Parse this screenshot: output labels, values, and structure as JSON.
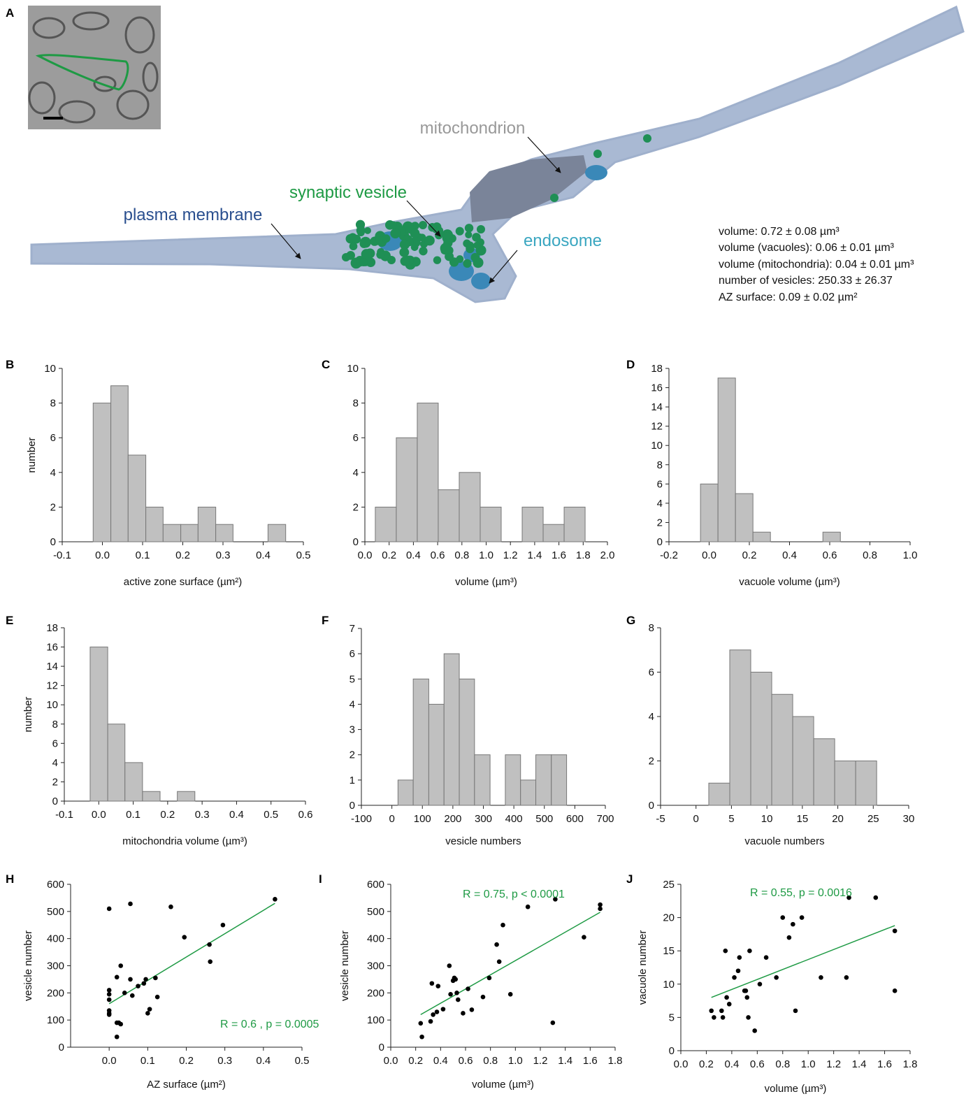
{
  "figure_a": {
    "panel_label": "A",
    "annotations": [
      "mitochondrion",
      "synaptic vesicle",
      "plasma membrane",
      "endosome"
    ],
    "stats": [
      "volume: 0.72 ± 0.08  µm³",
      "volume (vacuoles): 0.06 ± 0.01 µm³",
      "volume (mitochondria): 0.04 ± 0.01 µm³",
      "number of vesicles: 250.33 ± 26.37",
      "AZ surface: 0.09 ± 0.02 µm²"
    ]
  },
  "chart_data": [
    {
      "type": "histogram",
      "panel_label": "B",
      "color": "#c0c0c0",
      "bins": [
        -0.023,
        0.021,
        0.064,
        0.108,
        0.151,
        0.195,
        0.238,
        0.282,
        0.325,
        0.369,
        0.412,
        0.456
      ],
      "counts": [
        8,
        9,
        5,
        2,
        1,
        1,
        2,
        1,
        0,
        0,
        1
      ],
      "xlim": [
        -0.1,
        0.5
      ],
      "xticks": [
        -0.1,
        {
          "value": 0,
          "label": "0.0"
        },
        0.1,
        0.2,
        0.3,
        0.4,
        0.5
      ],
      "ylim": [
        0,
        10
      ],
      "yticks": [
        0,
        2,
        4,
        6,
        8,
        10
      ],
      "x_label": "active zone surface (µm²)",
      "y_label": "number"
    },
    {
      "type": "histogram",
      "panel_label": "C",
      "color": "#c0c0c0",
      "bins": [
        0.086,
        0.259,
        0.432,
        0.605,
        0.778,
        0.951,
        1.124,
        1.297,
        1.47,
        1.643,
        1.816
      ],
      "counts": [
        2,
        6,
        8,
        3,
        4,
        2,
        0,
        2,
        1,
        2
      ],
      "xlim": [
        0,
        2
      ],
      "xticks": [
        {
          "value": 0,
          "label": "0.0"
        },
        0.2,
        0.4,
        0.6,
        0.8,
        {
          "value": 1,
          "label": "1.0"
        },
        1.2,
        1.4,
        1.6,
        1.8,
        {
          "value": 2,
          "label": "2.0"
        }
      ],
      "ylim": [
        0,
        10
      ],
      "yticks": [
        0,
        2,
        4,
        6,
        8,
        10
      ],
      "x_label": "volume (µm³)"
    },
    {
      "type": "histogram",
      "panel_label": "D",
      "color": "#c0c0c0",
      "bins": [
        -0.043,
        0.044,
        0.131,
        0.218,
        0.305,
        0.392,
        0.479,
        0.566,
        0.653
      ],
      "counts": [
        6,
        17,
        5,
        1,
        0,
        0,
        0,
        1
      ],
      "xlim": [
        -0.2,
        1
      ],
      "xticks": [
        -0.2,
        {
          "value": 0,
          "label": "0.0"
        },
        0.2,
        0.4,
        0.6,
        0.8,
        {
          "value": 1,
          "label": "1.0"
        }
      ],
      "ylim": [
        0,
        18
      ],
      "yticks": [
        0,
        2,
        4,
        6,
        8,
        10,
        12,
        14,
        16,
        18
      ],
      "x_label": "vacuole volume (µm³)"
    },
    {
      "type": "histogram",
      "panel_label": "E",
      "color": "#c0c0c0",
      "bins": [
        -0.025,
        0.026,
        0.076,
        0.127,
        0.178,
        0.228,
        0.279
      ],
      "counts": [
        16,
        8,
        4,
        1,
        0,
        1
      ],
      "xlim": [
        -0.1,
        0.6
      ],
      "xticks": [
        -0.1,
        {
          "value": 0,
          "label": "0.0"
        },
        0.1,
        0.2,
        0.3,
        0.4,
        0.5,
        0.6
      ],
      "ylim": [
        0,
        18
      ],
      "yticks": [
        0,
        2,
        4,
        6,
        8,
        10,
        12,
        14,
        16,
        18
      ],
      "x_label": "mitochondria volume (µm³)",
      "y_label": "number"
    },
    {
      "type": "histogram",
      "panel_label": "F",
      "color": "#c0c0c0",
      "bins": [
        20,
        70,
        121,
        171,
        221,
        271,
        322,
        372,
        422,
        472,
        523,
        573
      ],
      "counts": [
        1,
        5,
        4,
        6,
        5,
        2,
        0,
        2,
        1,
        2,
        2
      ],
      "xlim": [
        -100,
        700
      ],
      "xticks": [
        -100,
        0,
        100,
        200,
        300,
        400,
        500,
        600,
        700
      ],
      "ylim": [
        0,
        7
      ],
      "yticks": [
        0,
        1,
        2,
        3,
        4,
        5,
        6,
        7
      ],
      "x_label": "vesicle numbers"
    },
    {
      "type": "histogram",
      "panel_label": "G",
      "color": "#c0c0c0",
      "bins": [
        1.8,
        4.76,
        7.72,
        10.68,
        13.64,
        16.6,
        19.56,
        22.52,
        25.48
      ],
      "counts": [
        1,
        7,
        6,
        5,
        4,
        3,
        2,
        2
      ],
      "xlim": [
        -5,
        30
      ],
      "xticks": [
        -5,
        0,
        5,
        10,
        15,
        20,
        25,
        30
      ],
      "ylim": [
        0,
        8
      ],
      "yticks": [
        0,
        2,
        4,
        6,
        8
      ],
      "x_label": "vacuole numbers"
    },
    {
      "type": "scatter",
      "panel_label": "H",
      "color": "#000000",
      "x": [
        0,
        0,
        0,
        0,
        0,
        0,
        0,
        0.02,
        0.025,
        0.03,
        0.02,
        0.02,
        0.03,
        0.04,
        0.055,
        0.055,
        0.06,
        0.075,
        0.09,
        0.095,
        0.1,
        0.105,
        0.12,
        0.125,
        0.16,
        0.195,
        0.26,
        0.262,
        0.295,
        0.43
      ],
      "y": [
        510,
        210,
        195,
        175,
        135,
        125,
        120,
        90,
        90,
        85,
        38,
        258,
        300,
        200,
        528,
        250,
        190,
        225,
        235,
        250,
        125,
        140,
        255,
        185,
        517,
        405,
        378,
        315,
        450,
        545
      ],
      "trendline": {
        "x": [
          0,
          0.43
        ],
        "y": [
          160,
          530
        ],
        "color": "#1e9a44"
      },
      "annotation": "R = 0.6 , p = 0.0005",
      "xlim": [
        -0.1,
        0.5
      ],
      "xticks": [
        {
          "value": 0,
          "label": "0.0"
        },
        0.1,
        0.2,
        0.3,
        0.4,
        0.5
      ],
      "ylim": [
        0,
        600
      ],
      "yticks": [
        0,
        100,
        200,
        300,
        400,
        500,
        600
      ],
      "x_label": "AZ surface (µm²)",
      "y_label": "vesicle number"
    },
    {
      "type": "scatter",
      "panel_label": "I",
      "color": "#000000",
      "x": [
        0.24,
        0.25,
        0.32,
        0.33,
        0.34,
        0.37,
        0.38,
        0.42,
        0.47,
        0.48,
        0.5,
        0.51,
        0.52,
        0.53,
        0.54,
        0.58,
        0.62,
        0.65,
        0.74,
        0.79,
        0.85,
        0.87,
        0.9,
        0.96,
        1.1,
        1.3,
        1.32,
        1.55,
        1.68,
        1.68
      ],
      "y": [
        88,
        38,
        95,
        235,
        120,
        130,
        225,
        140,
        300,
        195,
        245,
        255,
        250,
        200,
        175,
        125,
        215,
        138,
        185,
        255,
        378,
        315,
        450,
        195,
        517,
        90,
        545,
        405,
        525,
        510
      ],
      "trendline": {
        "x": [
          0.24,
          1.68
        ],
        "y": [
          120,
          497
        ],
        "color": "#1e9a44"
      },
      "annotation": "R = 0.75, p < 0.0001",
      "xlim": [
        0,
        1.8
      ],
      "xticks": [
        {
          "value": 0,
          "label": "0.0"
        },
        0.2,
        0.4,
        0.6,
        0.8,
        {
          "value": 1,
          "label": "1.0"
        },
        1.2,
        1.4,
        1.6,
        1.8
      ],
      "ylim": [
        0,
        600
      ],
      "yticks": [
        0,
        100,
        200,
        300,
        400,
        500,
        600
      ],
      "x_label": "volume (µm³)",
      "y_label": "vesicle number"
    },
    {
      "type": "scatter",
      "panel_label": "J",
      "color": "#000000",
      "x": [
        0.24,
        0.26,
        0.32,
        0.33,
        0.35,
        0.36,
        0.38,
        0.42,
        0.45,
        0.46,
        0.5,
        0.51,
        0.52,
        0.53,
        0.54,
        0.58,
        0.62,
        0.67,
        0.75,
        0.8,
        0.85,
        0.88,
        0.9,
        0.95,
        1.1,
        1.3,
        1.32,
        1.53,
        1.68,
        1.68
      ],
      "y": [
        6,
        5,
        6,
        5,
        15,
        8,
        7,
        11,
        12,
        14,
        9,
        9,
        8,
        5,
        15,
        3,
        10,
        14,
        11,
        20,
        17,
        19,
        6,
        20,
        11,
        11,
        23,
        23,
        18,
        9
      ],
      "trendline": {
        "x": [
          0.24,
          1.68
        ],
        "y": [
          8,
          18.8
        ],
        "color": "#1e9a44"
      },
      "annotation": "R = 0.55, p = 0.0016",
      "xlim": [
        0,
        1.8
      ],
      "xticks": [
        {
          "value": 0,
          "label": "0.0"
        },
        0.2,
        0.4,
        0.6,
        0.8,
        {
          "value": 1,
          "label": "1.0"
        },
        1.2,
        1.4,
        1.6,
        1.8
      ],
      "ylim": [
        0,
        25
      ],
      "yticks": [
        0,
        5,
        10,
        15,
        20,
        25
      ],
      "x_label": "volume (µm³)",
      "y_label": "vacuole number"
    }
  ]
}
